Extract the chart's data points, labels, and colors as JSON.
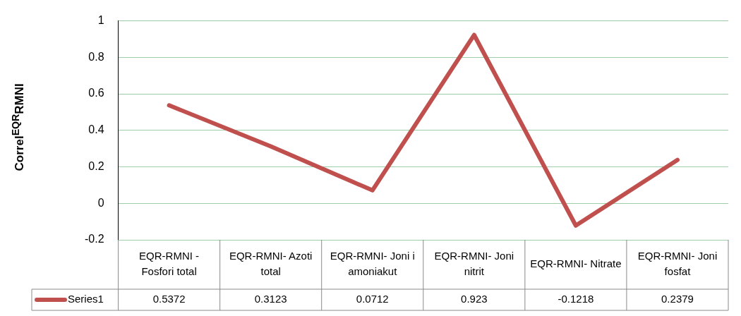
{
  "chart_data": {
    "type": "line",
    "ylabel": "Correl$^{EQR}$RMNI",
    "categories": [
      "EQR-RMNI - Fosfori total",
      "EQR-RMNI- Azoti total",
      "EQR-RMNI- Joni i amoniakut",
      "EQR-RMNI- Joni nitrit",
      "EQR-RMNI- Nitrate",
      "EQR-RMNI- Joni fosfat"
    ],
    "series": [
      {
        "name": "Series1",
        "color": "#c0504d",
        "values": [
          0.5372,
          0.3123,
          0.0712,
          0.923,
          -0.1218,
          0.2379
        ]
      }
    ],
    "ylim": [
      -0.2,
      1
    ],
    "yticks": [
      -0.2,
      0,
      0.2,
      0.4,
      0.6,
      0.8,
      1
    ],
    "grid": "y",
    "data_labels": true,
    "legend": "bottom left",
    "marker": "none",
    "line_style": "solid"
  }
}
